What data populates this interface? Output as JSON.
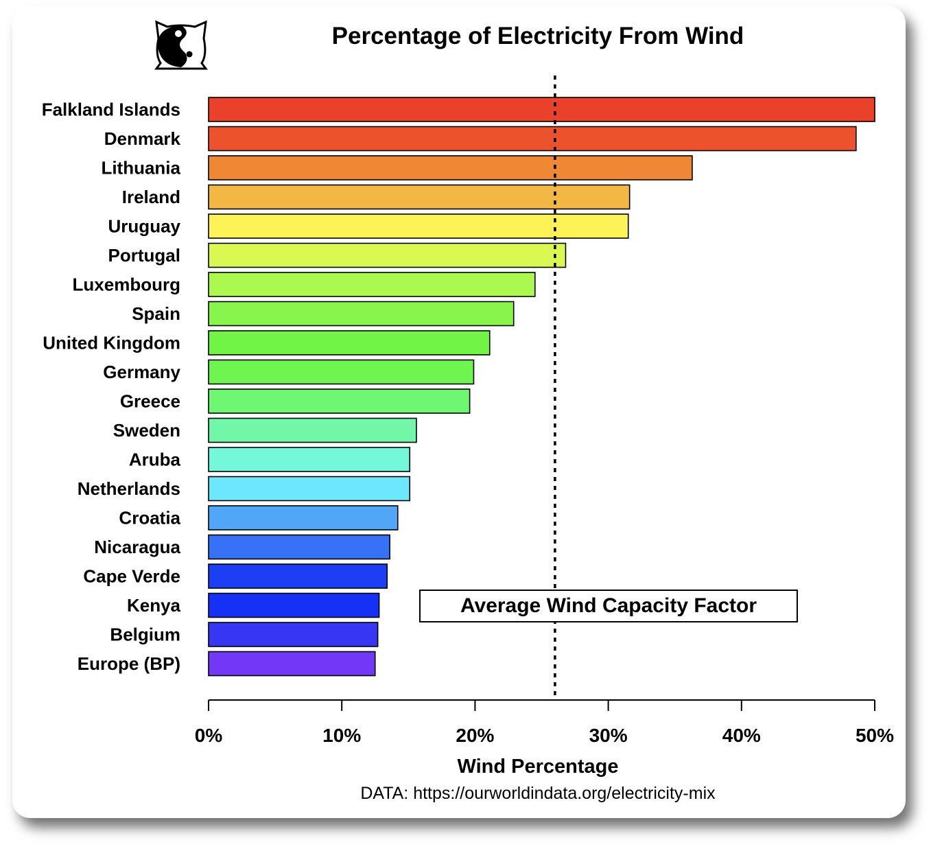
{
  "chart_data": {
    "type": "bar",
    "orientation": "horizontal",
    "title": "Percentage of Electricity From Wind",
    "xlabel": "Wind Percentage",
    "ylabel": "",
    "xlim": [
      0,
      50
    ],
    "x_ticks": [
      0,
      10,
      20,
      30,
      40,
      50
    ],
    "x_tick_labels": [
      "0%",
      "10%",
      "20%",
      "30%",
      "40%",
      "50%"
    ],
    "categories": [
      "Falkland Islands",
      "Denmark",
      "Lithuania",
      "Ireland",
      "Uruguay",
      "Portugal",
      "Luxembourg",
      "Spain",
      "United Kingdom",
      "Germany",
      "Greece",
      "Sweden",
      "Aruba",
      "Netherlands",
      "Croatia",
      "Nicaragua",
      "Cape Verde",
      "Kenya",
      "Belgium",
      "Europe (BP)"
    ],
    "values": [
      50.0,
      48.6,
      36.3,
      31.6,
      31.5,
      26.8,
      24.5,
      22.9,
      21.1,
      19.9,
      19.6,
      15.6,
      15.1,
      15.1,
      14.2,
      13.6,
      13.4,
      12.8,
      12.7,
      12.5
    ],
    "colors": [
      "#e9412a",
      "#ec532c",
      "#ef8835",
      "#f3b744",
      "#fdf256",
      "#d9f851",
      "#abf84e",
      "#88f54c",
      "#72f446",
      "#6ff54f",
      "#6ff774",
      "#72f7a8",
      "#75f7da",
      "#6de7fb",
      "#52a6f8",
      "#3671f6",
      "#1c3ff5",
      "#1431f5",
      "#3737f3",
      "#7138f6"
    ],
    "reference_line": {
      "value": 26,
      "style": "dotted",
      "label": "Average Wind Capacity Factor"
    },
    "grid": false,
    "source": "DATA: https://ourworldindata.org/electricity-mix"
  },
  "logo": {
    "name": "yin-yang-cat-logo"
  }
}
